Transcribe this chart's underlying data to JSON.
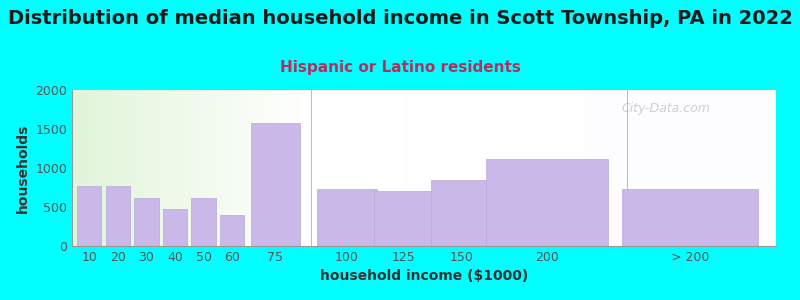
{
  "title": "Distribution of median household income in Scott Township, PA in 2022",
  "subtitle": "Hispanic or Latino residents",
  "xlabel": "household income ($1000)",
  "ylabel": "households",
  "background_color": "#00FFFF",
  "bar_color": "#c9b8e8",
  "bar_edge_color": "#b8a8d8",
  "categories": [
    "10",
    "20",
    "30",
    "40",
    "50",
    "60",
    "75",
    "100",
    "125",
    "150",
    "200",
    "> 200"
  ],
  "values": [
    775,
    775,
    615,
    480,
    615,
    400,
    1575,
    730,
    710,
    840,
    1115,
    730
  ],
  "ylim": [
    0,
    2000
  ],
  "yticks": [
    0,
    500,
    1000,
    1500,
    2000
  ],
  "watermark": "City-Data.com",
  "title_fontsize": 14,
  "subtitle_fontsize": 11,
  "axis_label_fontsize": 10,
  "tick_fontsize": 9,
  "bar_centers": [
    0.5,
    1.5,
    2.5,
    3.5,
    4.5,
    5.5,
    7.0,
    9.5,
    11.5,
    13.5,
    16.5,
    21.5
  ],
  "bar_widths": [
    0.9,
    0.9,
    0.9,
    0.9,
    0.9,
    0.9,
    1.8,
    2.2,
    2.2,
    2.2,
    4.5,
    5.0
  ],
  "sep1_x": 8.25,
  "sep2_x": 19.3,
  "xlim_left": -0.1,
  "xlim_right": 24.5,
  "gradient_split": 0.34
}
